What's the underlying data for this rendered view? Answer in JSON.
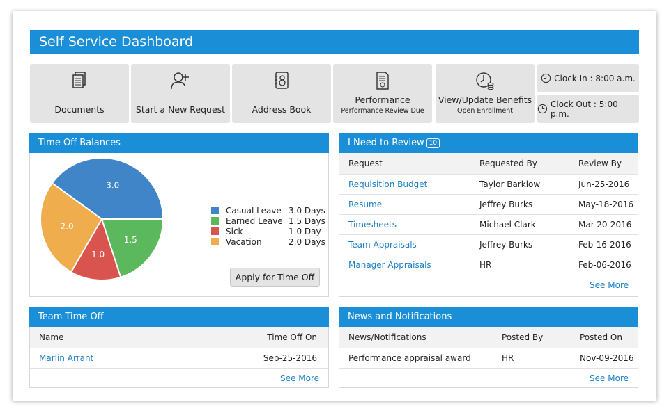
{
  "header": {
    "title": "Self Service Dashboard"
  },
  "tiles": [
    {
      "label": "Documents",
      "sub": "",
      "icon": "documents-icon"
    },
    {
      "label": "Start a New Request",
      "sub": "",
      "icon": "add-user-icon"
    },
    {
      "label": "Address Book",
      "sub": "",
      "icon": "address-book-icon"
    },
    {
      "label": "Performance",
      "sub": "Performance Review Due",
      "icon": "performance-doc-icon"
    },
    {
      "label": "View/Update Benefits",
      "sub": "Open Enrollment",
      "icon": "benefits-icon"
    }
  ],
  "clock": {
    "in_label": "Clock In : 8:00 a.m.",
    "out_label": "Clock Out : 5:00 p.m."
  },
  "time_off": {
    "title": "Time Off Balances",
    "apply_label": "Apply for Time Off",
    "legend": [
      {
        "name": "Casual Leave",
        "value": "3.0 Days",
        "color": "#3f85c8"
      },
      {
        "name": "Earned Leave",
        "value": "1.5 Days",
        "color": "#5cb85c"
      },
      {
        "name": "Sick",
        "value": "1.0 Day",
        "color": "#d9534f"
      },
      {
        "name": "Vacation",
        "value": "2.0 Days",
        "color": "#f0ad4e"
      }
    ]
  },
  "chart_data": {
    "type": "pie",
    "categories": [
      "Casual Leave",
      "Earned Leave",
      "Sick",
      "Vacation"
    ],
    "values": [
      3.0,
      1.5,
      1.0,
      2.0
    ],
    "labels": [
      "3.0",
      "1.5",
      "1.0",
      "2.0"
    ],
    "colors": [
      "#3f85c8",
      "#5cb85c",
      "#d9534f",
      "#f0ad4e"
    ]
  },
  "review": {
    "title": "I Need to Review",
    "count": "10",
    "columns": [
      "Request",
      "Requested By",
      "Review By"
    ],
    "rows": [
      [
        "Requisition Budget",
        "Taylor Barklow",
        "Jun-25-2016"
      ],
      [
        "Resume",
        "Jeffrey Burks",
        "May-18-2016"
      ],
      [
        "Timesheets",
        "Michael Clark",
        "Mar-20-2016"
      ],
      [
        "Team Appraisals",
        "Jeffrey Burks",
        "Feb-16-2016"
      ],
      [
        "Manager Appraisals",
        "HR",
        "Feb-06-2016"
      ]
    ],
    "see_more": "See More"
  },
  "team": {
    "title": "Team Time Off",
    "columns": [
      "Name",
      "Time Off On"
    ],
    "rows": [
      [
        "Marlin Arrant",
        "Sep-25-2016"
      ]
    ],
    "see_more": "See More"
  },
  "news": {
    "title": "News and Notifications",
    "columns": [
      "News/Notifications",
      "Posted By",
      "Posted On"
    ],
    "rows": [
      [
        "Performance appraisal award",
        "HR",
        "Nov-09-2016"
      ]
    ],
    "see_more": "See More"
  }
}
